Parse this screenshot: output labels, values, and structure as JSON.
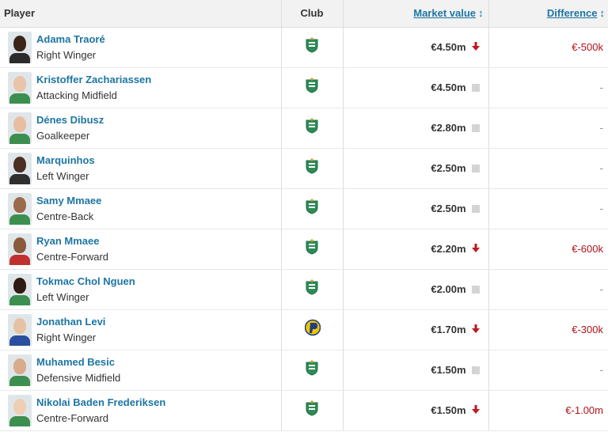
{
  "header": {
    "player": "Player",
    "club": "Club",
    "market_value": "Market value",
    "difference": "Difference",
    "sort_icon": "↕"
  },
  "colors": {
    "link": "#1d75a3",
    "negative": "#b11318",
    "arrow_down": "#c1171d",
    "neutral_square": "#d4d4d4",
    "ferencvaros_green": "#2e8b57",
    "puskas_yellow": "#f2c200",
    "puskas_blue": "#1a3f8a"
  },
  "rows": [
    {
      "name": "Adama Traoré",
      "position": "Right Winger",
      "club_icon": "ferencvaros-crest-icon",
      "value": "€4.50m",
      "trend": "down",
      "diff": "€-500k",
      "skin": "#3b2418",
      "shirt": "#2b2b2b"
    },
    {
      "name": "Kristoffer Zachariassen",
      "position": "Attacking Midfield",
      "club_icon": "ferencvaros-crest-icon",
      "value": "€4.50m",
      "trend": "none",
      "diff": "-",
      "skin": "#e8c4a8",
      "shirt": "#3d8f4f"
    },
    {
      "name": "Dénes Dibusz",
      "position": "Goalkeeper",
      "club_icon": "ferencvaros-crest-icon",
      "value": "€2.80m",
      "trend": "none",
      "diff": "-",
      "skin": "#e7bfa0",
      "shirt": "#3d8f4f"
    },
    {
      "name": "Marquinhos",
      "position": "Left Winger",
      "club_icon": "ferencvaros-crest-icon",
      "value": "€2.50m",
      "trend": "none",
      "diff": "-",
      "skin": "#4a2f22",
      "shirt": "#2f2f2f"
    },
    {
      "name": "Samy Mmaee",
      "position": "Centre-Back",
      "club_icon": "ferencvaros-crest-icon",
      "value": "€2.50m",
      "trend": "none",
      "diff": "-",
      "skin": "#9b6a48",
      "shirt": "#3d8f4f"
    },
    {
      "name": "Ryan Mmaee",
      "position": "Centre-Forward",
      "club_icon": "ferencvaros-crest-icon",
      "value": "€2.20m",
      "trend": "down",
      "diff": "€-600k",
      "skin": "#8a5a3c",
      "shirt": "#c0302f"
    },
    {
      "name": "Tokmac Chol Nguen",
      "position": "Left Winger",
      "club_icon": "ferencvaros-crest-icon",
      "value": "€2.00m",
      "trend": "none",
      "diff": "-",
      "skin": "#2e1b12",
      "shirt": "#3d8f4f"
    },
    {
      "name": "Jonathan Levi",
      "position": "Right Winger",
      "club_icon": "puskas-akademia-crest-icon",
      "value": "€1.70m",
      "trend": "down",
      "diff": "€-300k",
      "skin": "#e6c2a4",
      "shirt": "#2a4f9e"
    },
    {
      "name": "Muhamed Besic",
      "position": "Defensive Midfield",
      "club_icon": "ferencvaros-crest-icon",
      "value": "€1.50m",
      "trend": "none",
      "diff": "-",
      "skin": "#d8ab8a",
      "shirt": "#3d8f4f"
    },
    {
      "name": "Nikolai Baden Frederiksen",
      "position": "Centre-Forward",
      "club_icon": "ferencvaros-crest-icon",
      "value": "€1.50m",
      "trend": "down",
      "diff": "€-1.00m",
      "skin": "#efcfb4",
      "shirt": "#3d8f4f"
    }
  ]
}
